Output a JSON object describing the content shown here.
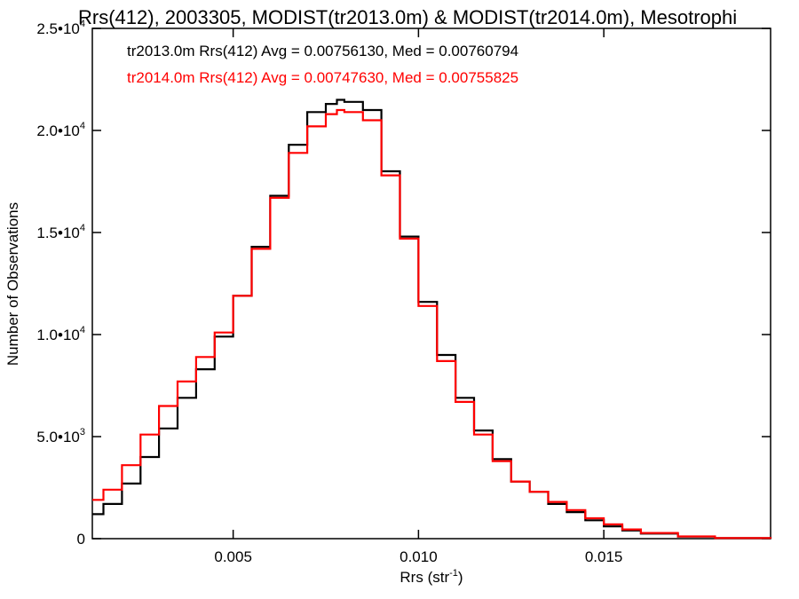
{
  "chart_data": {
    "type": "line",
    "title": "Rrs(412), 2003305, MODIST(tr2013.0m) & MODIST(tr2014.0m), Mesotrophi",
    "xlabel_main": "Rrs (str",
    "xlabel_sup": "-1",
    "xlabel_close": ")",
    "ylabel": "Number of Observations",
    "xlim": [
      0.0012,
      0.0195
    ],
    "ylim": [
      0,
      25000
    ],
    "xticks": [
      {
        "value": 0.005,
        "label": "0.005"
      },
      {
        "value": 0.01,
        "label": "0.010"
      },
      {
        "value": 0.015,
        "label": "0.015"
      }
    ],
    "yticks": [
      {
        "value": 0,
        "mant": "0",
        "exp": ""
      },
      {
        "value": 5000,
        "mant": "5.0•10",
        "exp": "3"
      },
      {
        "value": 10000,
        "mant": "1.0•10",
        "exp": "4"
      },
      {
        "value": 15000,
        "mant": "1.5•10",
        "exp": "4"
      },
      {
        "value": 20000,
        "mant": "2.0•10",
        "exp": "4"
      },
      {
        "value": 25000,
        "mant": "2.5•10",
        "exp": "4"
      }
    ],
    "legend": [
      {
        "text": "tr2013.0m Rrs(412) Avg = 0.00756130, Med = 0.00760794",
        "color": "#000000"
      },
      {
        "text": "tr2014.0m Rrs(412) Avg = 0.00747630, Med = 0.00755825",
        "color": "#ff0000"
      }
    ],
    "series": [
      {
        "color": "#000000",
        "x": [
          0.0012,
          0.0015,
          0.002,
          0.0025,
          0.003,
          0.0035,
          0.004,
          0.0045,
          0.005,
          0.0055,
          0.006,
          0.0065,
          0.007,
          0.0075,
          0.0078,
          0.008,
          0.0085,
          0.009,
          0.0095,
          0.01,
          0.0105,
          0.011,
          0.0115,
          0.012,
          0.0125,
          0.013,
          0.0135,
          0.014,
          0.0145,
          0.015,
          0.0155,
          0.016,
          0.017,
          0.018,
          0.0195
        ],
        "y": [
          1200,
          1700,
          2700,
          4000,
          5400,
          6900,
          8300,
          9900,
          11900,
          14300,
          16800,
          19300,
          20900,
          21300,
          21500,
          21400,
          21000,
          18000,
          14800,
          11600,
          9000,
          6900,
          5300,
          3900,
          2800,
          2300,
          1700,
          1300,
          900,
          600,
          400,
          250,
          100,
          30,
          0
        ]
      },
      {
        "color": "#ff0000",
        "x": [
          0.0012,
          0.0015,
          0.002,
          0.0025,
          0.003,
          0.0035,
          0.004,
          0.0045,
          0.005,
          0.0055,
          0.006,
          0.0065,
          0.007,
          0.0075,
          0.0078,
          0.008,
          0.0085,
          0.009,
          0.0095,
          0.01,
          0.0105,
          0.011,
          0.0115,
          0.012,
          0.0125,
          0.013,
          0.0135,
          0.014,
          0.0145,
          0.015,
          0.0155,
          0.016,
          0.017,
          0.018,
          0.0195
        ],
        "y": [
          1900,
          2400,
          3600,
          5100,
          6500,
          7700,
          8900,
          10100,
          11900,
          14200,
          16700,
          18900,
          20200,
          20800,
          21000,
          20900,
          20500,
          17800,
          14700,
          11400,
          8700,
          6700,
          5100,
          3800,
          2800,
          2300,
          1800,
          1400,
          1000,
          700,
          450,
          280,
          110,
          30,
          0
        ]
      }
    ]
  }
}
